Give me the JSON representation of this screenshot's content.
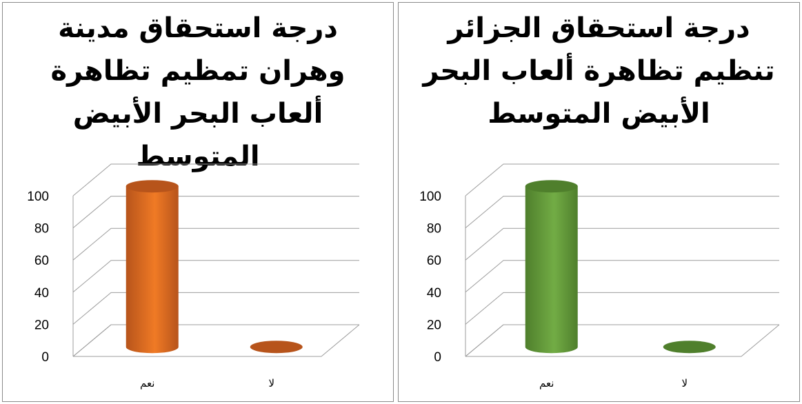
{
  "colors": {
    "left_bar": "#f07a25",
    "left_bar_dark": "#b7541b",
    "right_bar": "#72ac45",
    "right_bar_dark": "#4f7f2c",
    "grid": "#9c9c9c"
  },
  "chart_data": [
    {
      "type": "bar",
      "style": "3d-cylinder",
      "title": "درجة استحقاق مدينة وهران تمظيم تظاهرة ألعاب البحر الأبيض المتوسط",
      "categories": [
        "نعم",
        "لا"
      ],
      "values": [
        100,
        0
      ],
      "ylim": [
        0,
        100
      ],
      "yticks": [
        "0",
        "20",
        "40",
        "60",
        "80",
        "100"
      ],
      "grid": true,
      "color": "#f07a25"
    },
    {
      "type": "bar",
      "style": "3d-cylinder",
      "title": "درجة استحقاق الجزائر تنظيم تظاهرة ألعاب البحر الأبيض المتوسط",
      "categories": [
        "نعم",
        "لا"
      ],
      "values": [
        100,
        0
      ],
      "ylim": [
        0,
        100
      ],
      "yticks": [
        "0",
        "20",
        "40",
        "60",
        "80",
        "100"
      ],
      "grid": true,
      "color": "#72ac45"
    }
  ]
}
